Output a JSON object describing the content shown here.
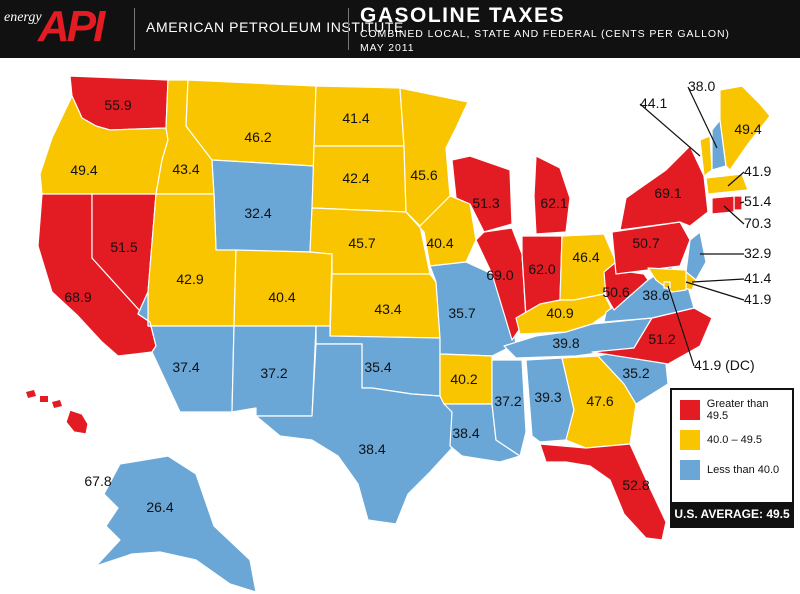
{
  "header": {
    "logo_small": "energy",
    "logo_big": "API",
    "organization": "AMERICAN PETROLEUM INSTITUTE",
    "title": "GASOLINE TAXES",
    "subtitle_1": "COMBINED LOCAL, STATE AND FEDERAL (CENTS PER GALLON)",
    "subtitle_2": "MAY 2011"
  },
  "colors": {
    "high": "#e31b23",
    "mid": "#f9c400",
    "low": "#6aa7d6",
    "header_bg": "#111111"
  },
  "legend": {
    "high_label": "Greater than 49.5",
    "mid_label": "40.0 – 49.5",
    "low_label": "Less than 40.0",
    "average": "U.S. AVERAGE: 49.5"
  },
  "states": [
    {
      "state": "WA",
      "value": "55.9",
      "category": "high"
    },
    {
      "state": "OR",
      "value": "49.4",
      "category": "mid"
    },
    {
      "state": "CA",
      "value": "68.9",
      "category": "high"
    },
    {
      "state": "NV",
      "value": "51.5",
      "category": "high"
    },
    {
      "state": "ID",
      "value": "43.4",
      "category": "mid"
    },
    {
      "state": "MT",
      "value": "46.2",
      "category": "mid"
    },
    {
      "state": "WY",
      "value": "32.4",
      "category": "low"
    },
    {
      "state": "UT",
      "value": "42.9",
      "category": "mid"
    },
    {
      "state": "AZ",
      "value": "37.4",
      "category": "low"
    },
    {
      "state": "CO",
      "value": "40.4",
      "category": "mid"
    },
    {
      "state": "NM",
      "value": "37.2",
      "category": "low"
    },
    {
      "state": "ND",
      "value": "41.4",
      "category": "mid"
    },
    {
      "state": "SD",
      "value": "42.4",
      "category": "mid"
    },
    {
      "state": "NE",
      "value": "45.7",
      "category": "mid"
    },
    {
      "state": "KS",
      "value": "43.4",
      "category": "mid"
    },
    {
      "state": "OK",
      "value": "35.4",
      "category": "low"
    },
    {
      "state": "TX",
      "value": "38.4",
      "category": "low"
    },
    {
      "state": "MN",
      "value": "45.6",
      "category": "mid"
    },
    {
      "state": "IA",
      "value": "40.4",
      "category": "mid"
    },
    {
      "state": "MO",
      "value": "35.7",
      "category": "low"
    },
    {
      "state": "AR",
      "value": "40.2",
      "category": "mid"
    },
    {
      "state": "LA",
      "value": "38.4",
      "category": "low"
    },
    {
      "state": "WI",
      "value": "51.3",
      "category": "high"
    },
    {
      "state": "IL",
      "value": "69.0",
      "category": "high"
    },
    {
      "state": "MI",
      "value": "62.1",
      "category": "high"
    },
    {
      "state": "IN",
      "value": "62.0",
      "category": "high"
    },
    {
      "state": "OH",
      "value": "46.4",
      "category": "mid"
    },
    {
      "state": "KY",
      "value": "40.9",
      "category": "mid"
    },
    {
      "state": "TN",
      "value": "39.8",
      "category": "low"
    },
    {
      "state": "MS",
      "value": "37.2",
      "category": "low"
    },
    {
      "state": "AL",
      "value": "39.3",
      "category": "low"
    },
    {
      "state": "GA",
      "value": "47.6",
      "category": "mid"
    },
    {
      "state": "FL",
      "value": "52.8",
      "category": "high"
    },
    {
      "state": "SC",
      "value": "35.2",
      "category": "low"
    },
    {
      "state": "NC",
      "value": "51.2",
      "category": "high"
    },
    {
      "state": "VA",
      "value": "38.6",
      "category": "low"
    },
    {
      "state": "WV",
      "value": "50.6",
      "category": "high"
    },
    {
      "state": "PA",
      "value": "50.7",
      "category": "high"
    },
    {
      "state": "NY",
      "value": "69.1",
      "category": "high"
    },
    {
      "state": "VT",
      "value": "44.1",
      "category": "mid"
    },
    {
      "state": "NH",
      "value": "38.0",
      "category": "low"
    },
    {
      "state": "ME",
      "value": "49.4",
      "category": "mid"
    },
    {
      "state": "MA",
      "value": "41.9",
      "category": "mid"
    },
    {
      "state": "RI",
      "value": "51.4",
      "category": "high"
    },
    {
      "state": "CT",
      "value": "70.3",
      "category": "high"
    },
    {
      "state": "NJ",
      "value": "32.9",
      "category": "low"
    },
    {
      "state": "DE",
      "value": "41.4",
      "category": "mid"
    },
    {
      "state": "MD",
      "value": "41.9",
      "category": "mid"
    },
    {
      "state": "DC",
      "value": "41.9 (DC)",
      "category": "mid"
    },
    {
      "state": "AK",
      "value": "26.4",
      "category": "low"
    },
    {
      "state": "HI",
      "value": "67.8",
      "category": "high"
    }
  ]
}
